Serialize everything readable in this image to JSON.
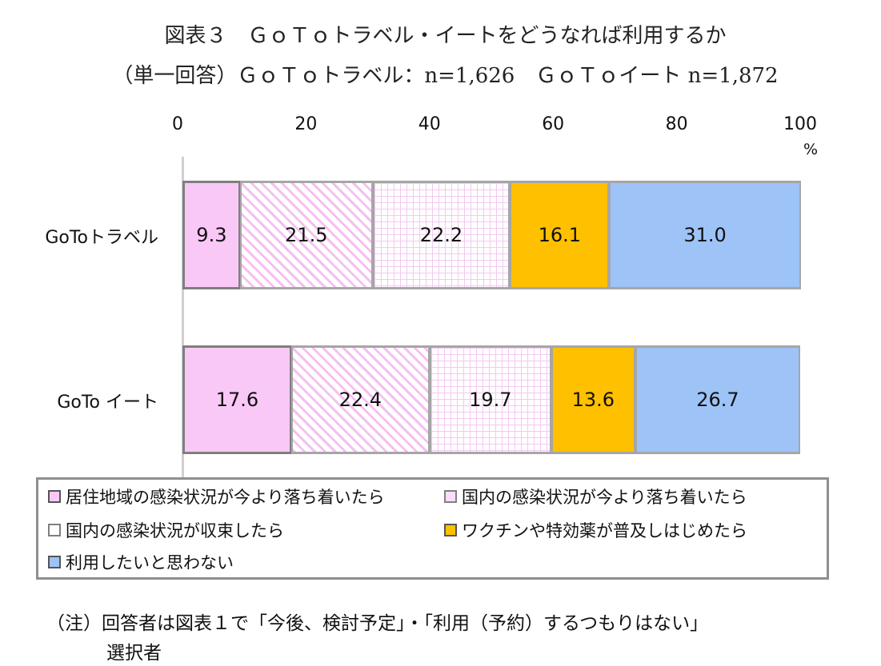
{
  "title": {
    "line1": "図表３　ＧｏＴｏトラベル・イートをどうなれば利用するか",
    "line2": "（単一回答）ＧｏＴｏトラベル：n=1,626　ＧｏＴｏイート n=1,872"
  },
  "chart_data": {
    "type": "bar",
    "orientation": "horizontal",
    "stacked": true,
    "unit": "%",
    "x_ticks": [
      "0",
      "20",
      "40",
      "60",
      "80",
      "100"
    ],
    "xlim": [
      0,
      100
    ],
    "categories": [
      "GoToトラベル",
      "GoTo イート"
    ],
    "series": [
      {
        "name": "居住地域の感染状況が今より落ち着いたら",
        "values": [
          9.3,
          17.6
        ],
        "labels": [
          "9.3",
          "17.6"
        ],
        "color": "#f9c8f7"
      },
      {
        "name": "国内の感染状況が今より落ち着いたら",
        "values": [
          21.5,
          22.4
        ],
        "labels": [
          "21.5",
          "22.4"
        ],
        "color": "#fbdcfa"
      },
      {
        "name": "国内の感染状況が収束したら",
        "values": [
          22.2,
          19.7
        ],
        "labels": [
          "22.2",
          "19.7"
        ],
        "color": "#ffffff"
      },
      {
        "name": "ワクチンや特効薬が普及しはじめたら",
        "values": [
          16.1,
          13.6
        ],
        "labels": [
          "16.1",
          "13.6"
        ],
        "color": "#ffc000"
      },
      {
        "name": "利用したいと思わない",
        "values": [
          31.0,
          26.7
        ],
        "labels": [
          "31.0",
          "26.7"
        ],
        "color": "#9dc3f7"
      }
    ],
    "legend_position": "bottom",
    "grid": false
  },
  "note": {
    "line1": "（注）回答者は図表１で「今後、検討予定」・「利用（予約）するつもりはない」",
    "line2": "選択者"
  }
}
